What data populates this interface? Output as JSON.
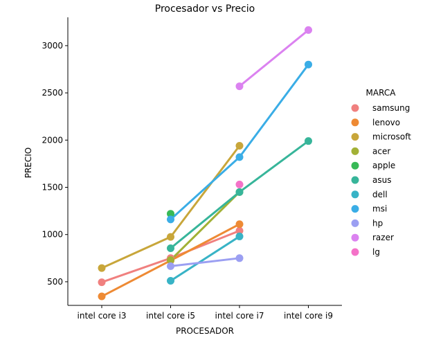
{
  "chart_data": {
    "type": "line",
    "title": "Procesador vs Precio",
    "xlabel": "PROCESADOR",
    "ylabel": "PRECIO",
    "categories": [
      "intel core i3",
      "intel core i5",
      "intel core i7",
      "intel core i9"
    ],
    "yticks": [
      500,
      1000,
      1500,
      2000,
      2500,
      3000
    ],
    "ylim": [
      250,
      3300
    ],
    "grid": false,
    "legend_title": "MARCA",
    "legend_position": "right",
    "series": [
      {
        "name": "samsung",
        "color": "#f0807f",
        "values": [
          495,
          750,
          1040,
          null
        ]
      },
      {
        "name": "lenovo",
        "color": "#ee8a34",
        "values": [
          345,
          725,
          1110,
          null
        ]
      },
      {
        "name": "microsoft",
        "color": "#c8a63a",
        "values": [
          645,
          975,
          1940,
          null
        ]
      },
      {
        "name": "acer",
        "color": "#a2b136",
        "values": [
          null,
          730,
          1450,
          null
        ]
      },
      {
        "name": "apple",
        "color": "#38b957",
        "values": [
          null,
          1220,
          null,
          null
        ]
      },
      {
        "name": "asus",
        "color": "#37b59a",
        "values": [
          null,
          855,
          1450,
          1990
        ]
      },
      {
        "name": "dell",
        "color": "#38b3c6",
        "values": [
          null,
          510,
          980,
          null
        ]
      },
      {
        "name": "msi",
        "color": "#3aade6",
        "values": [
          null,
          1160,
          1820,
          2800
        ]
      },
      {
        "name": "hp",
        "color": "#9b9ff2",
        "values": [
          null,
          665,
          750,
          null
        ]
      },
      {
        "name": "razer",
        "color": "#db82f0",
        "values": [
          null,
          null,
          2570,
          3165
        ]
      },
      {
        "name": "lg",
        "color": "#f472c8",
        "values": [
          null,
          null,
          1530,
          null
        ]
      }
    ]
  }
}
